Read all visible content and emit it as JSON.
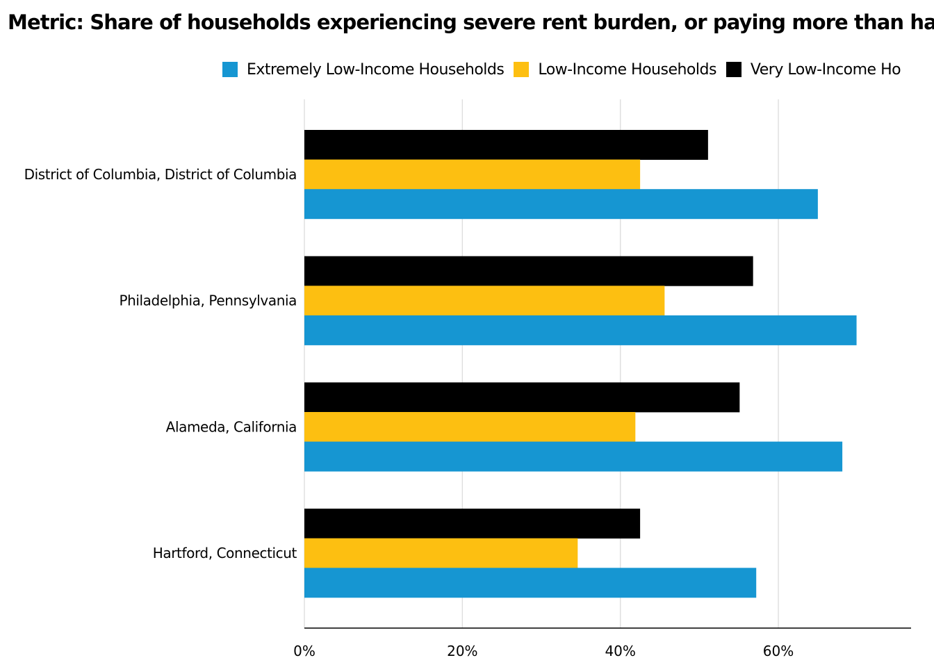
{
  "title": "Metric: Share of households experiencing severe rent burden, or paying more than half of their",
  "chart_data": {
    "type": "bar",
    "orientation": "horizontal",
    "title": "Metric: Share of households experiencing severe rent burden, or paying more than half of their",
    "categories": [
      "District of Columbia, District of Columbia",
      "Philadelphia, Pennsylvania",
      "Alameda, California",
      "Hartford, Connecticut"
    ],
    "series": [
      {
        "name": "Very Low-Income Ho",
        "color": "#000000",
        "values": [
          51.1,
          56.8,
          55.1,
          42.5
        ]
      },
      {
        "name": "Low-Income Households",
        "color": "#FDBF11",
        "values": [
          42.5,
          45.6,
          41.9,
          34.6
        ]
      },
      {
        "name": "Extremely Low-Income Households",
        "color": "#1696D2",
        "values": [
          65.0,
          69.9,
          68.1,
          57.2
        ]
      }
    ],
    "legend_order": [
      "Extremely Low-Income Households",
      "Low-Income Households",
      "Very Low-Income Ho"
    ],
    "xlim": [
      0,
      76.8
    ],
    "xticks": [
      0,
      20,
      40,
      60
    ],
    "xtick_labels": [
      "0%",
      "20%",
      "40%",
      "60%"
    ],
    "xlabel": "",
    "ylabel": "",
    "grid": "vertical",
    "legend_position": "top"
  }
}
